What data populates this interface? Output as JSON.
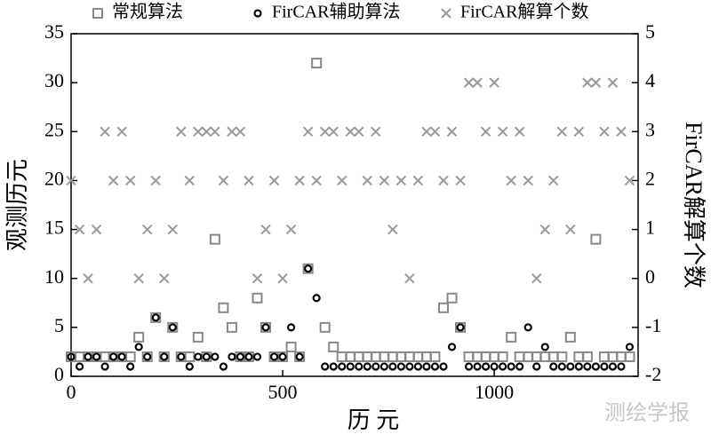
{
  "chart_data": {
    "type": "scatter",
    "xlabel": "历 元",
    "ylabel": "观测历元",
    "y2label": "FirCAR解算个数",
    "watermark": "测绘学报",
    "x": [
      0,
      20,
      40,
      60,
      80,
      100,
      120,
      140,
      160,
      180,
      200,
      220,
      240,
      260,
      280,
      300,
      320,
      340,
      360,
      380,
      400,
      420,
      440,
      460,
      480,
      500,
      520,
      540,
      560,
      580,
      600,
      620,
      640,
      660,
      680,
      700,
      720,
      740,
      760,
      780,
      800,
      820,
      840,
      860,
      880,
      900,
      920,
      940,
      960,
      980,
      1000,
      1020,
      1040,
      1060,
      1080,
      1100,
      1120,
      1140,
      1160,
      1180,
      1200,
      1220,
      1240,
      1260,
      1280,
      1300,
      1320
    ],
    "series": [
      {
        "name": "常规算法",
        "marker": "square",
        "color": "#888888",
        "values": [
          2,
          2,
          2,
          2,
          2,
          2,
          2,
          2,
          4,
          2,
          6,
          2,
          5,
          2,
          2,
          4,
          2,
          14,
          7,
          5,
          2,
          2,
          8,
          5,
          2,
          2,
          3,
          2,
          11,
          32,
          5,
          3,
          2,
          2,
          2,
          2,
          2,
          2,
          2,
          2,
          2,
          2,
          2,
          2,
          7,
          8,
          5,
          2,
          2,
          2,
          2,
          2,
          4,
          2,
          2,
          2,
          2,
          2,
          2,
          4,
          2,
          2,
          14,
          2,
          2,
          2,
          2
        ]
      },
      {
        "name": "FirCAR辅助算法",
        "marker": "circle",
        "color": "#000000",
        "values": [
          2,
          1,
          2,
          2,
          1,
          2,
          2,
          1,
          3,
          2,
          6,
          2,
          5,
          2,
          1,
          2,
          2,
          2,
          1,
          2,
          2,
          2,
          2,
          5,
          2,
          2,
          5,
          2,
          11,
          8,
          1,
          1,
          1,
          1,
          1,
          1,
          1,
          1,
          1,
          1,
          1,
          1,
          1,
          1,
          1,
          3,
          5,
          1,
          1,
          1,
          1,
          1,
          1,
          1,
          5,
          1,
          3,
          1,
          1,
          1,
          1,
          1,
          1,
          1,
          1,
          1,
          3
        ]
      },
      {
        "name": "FirCAR解算个数",
        "marker": "cross",
        "color": "#999999",
        "axis": "y2",
        "values": [
          2,
          1,
          0,
          1,
          3,
          2,
          3,
          2,
          0,
          1,
          2,
          0,
          1,
          3,
          2,
          3,
          3,
          3,
          2,
          3,
          3,
          2,
          0,
          1,
          2,
          0,
          1,
          2,
          3,
          2,
          3,
          3,
          2,
          3,
          3,
          2,
          3,
          2,
          1,
          2,
          0,
          2,
          3,
          3,
          2,
          3,
          2,
          4,
          4,
          3,
          4,
          3,
          2,
          3,
          2,
          0,
          1,
          2,
          3,
          1,
          3,
          4,
          4,
          3,
          4,
          3,
          2
        ]
      }
    ],
    "xlim": [
      0,
      1340
    ],
    "xticks": [
      0,
      500,
      1000
    ],
    "ylim": [
      0,
      35
    ],
    "yticks": [
      0,
      5,
      10,
      15,
      20,
      25,
      30,
      35
    ],
    "y2lim": [
      -2,
      5
    ],
    "y2ticks": [
      -2,
      -1,
      0,
      1,
      2,
      3,
      4,
      5
    ]
  }
}
